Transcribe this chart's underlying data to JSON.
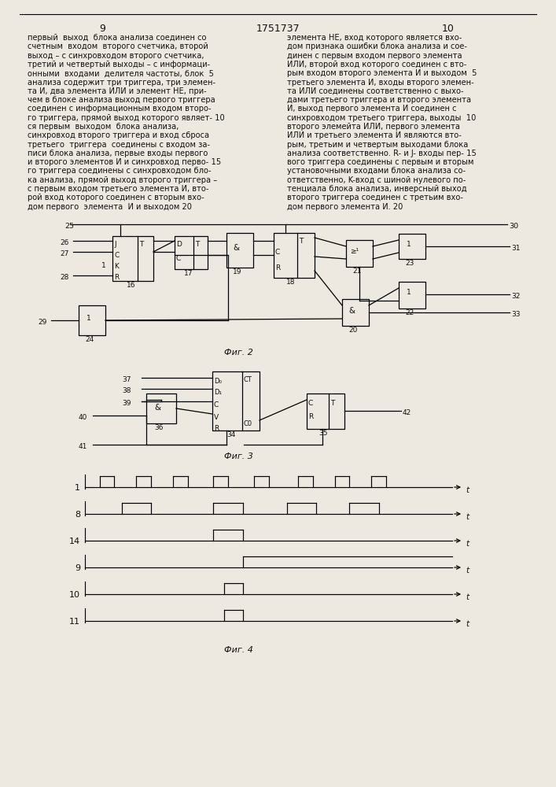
{
  "background_color": "#ede8e0",
  "text_color": "#111111",
  "page_left": "9",
  "page_center": "1751737",
  "page_right": "10",
  "body_left": [
    "первый  выход  блока анализа соединен со",
    "счетным  входом  второго счетчика, второй",
    "выход – с синхровходом второго счетчика,",
    "третий и четвертый выходы – с информаци-",
    "онными  входами  делителя частоты, блок  5",
    "анализа содержит три триггера, три элемен-",
    "та И, два элемента ИЛИ и элемент НЕ, при-",
    "чем в блоке анализа выход первого триггера",
    "соединен с информационным входом второ-",
    "го триггера, прямой выход которого являет- 10",
    "ся первым  выходом  блока анализа,",
    "синхровход второго триггера и вход сброса",
    "третьего  триггера  соединены с входом за-",
    "писи блока анализа, первые входы первого",
    "и второго элементов И и синхровход перво- 15",
    "го триггера соединены с синхровходом бло-",
    "ка анализа, прямой выход второго триггера –",
    "с первым входом третьего элемента И, вто-",
    "рой вход которого соединен с вторым вхо-",
    "дом первого  элемента  И и выходом 20"
  ],
  "body_right": [
    "элемента НЕ, вход которого является вхо-",
    "дом признака ошибки блока анализа и сое-",
    "динен с первым входом первого элемента",
    "ИЛИ, второй вход которого соединен с вто-",
    "рым входом второго элемента И и выходом  5",
    "третьего элемента И, входы второго элемен-",
    "та ИЛИ соединены соответственно с выхо-",
    "дами третьего триггера и второго элемента",
    "И, выход первого элемента И соединен с",
    "синхровходом третьего триггера, выходы  10",
    "второго элемейта ИЛИ, первого элемента",
    "ИЛИ и третьего элемента И являются вто-",
    "рым, третьим и четвертым выходами блока",
    "анализа соответственно. R- и J- входы пер- 15",
    "вого триггера соединены с первым и вторым",
    "установочными входами блока анализа со-",
    "ответственно, K-вход с шиной нулевого по-",
    "тенциала блока анализа, инверсный выход",
    "второго триггера соединен с третьим вхо-",
    "дом первого элемента И. 20"
  ]
}
